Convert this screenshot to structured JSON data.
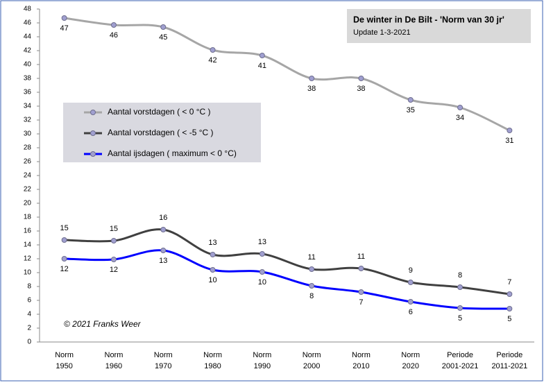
{
  "chart_data": {
    "type": "line",
    "title": "De winter in De Bilt - 'Norm van 30 jr'",
    "subtitle": "Update 1-3-2021",
    "annotation": "© 2021 Franks Weer",
    "categories": [
      [
        "Norm",
        "1950"
      ],
      [
        "Norm",
        "1960"
      ],
      [
        "Norm",
        "1970"
      ],
      [
        "Norm",
        "1980"
      ],
      [
        "Norm",
        "1990"
      ],
      [
        "Norm",
        "2000"
      ],
      [
        "Norm",
        "2010"
      ],
      [
        "Norm",
        "2020"
      ],
      [
        "Periode",
        "2001-2021"
      ],
      [
        "Periode",
        "2011-2021"
      ]
    ],
    "series": [
      {
        "name": "Aantal vorstdagen ( < 0 °C )",
        "color": "#a6a6a6",
        "values": [
          46.7,
          45.7,
          45.4,
          42.1,
          41.3,
          38.0,
          38.0,
          34.9,
          33.8,
          30.5
        ],
        "value_labels": [
          "47",
          "46",
          "45",
          "42",
          "41",
          "38",
          "38",
          "35",
          "34",
          "31"
        ]
      },
      {
        "name": "Aantal vorstdagen ( < -5 °C )",
        "color": "#404040",
        "values": [
          14.7,
          14.6,
          16.2,
          12.6,
          12.7,
          10.5,
          10.6,
          8.6,
          7.9,
          6.9
        ],
        "value_labels": [
          "15",
          "15",
          "16",
          "13",
          "13",
          "11",
          "11",
          "9",
          "8",
          "7"
        ]
      },
      {
        "name": "Aantal ijsdagen ( maximum < 0 °C)",
        "color": "#0000ff",
        "values": [
          12.0,
          11.9,
          13.2,
          10.4,
          10.1,
          8.1,
          7.2,
          5.8,
          4.9,
          4.8
        ],
        "value_labels": [
          "12",
          "12",
          "13",
          "10",
          "10",
          "8",
          "7",
          "6",
          "5",
          "5"
        ]
      }
    ],
    "ylim": [
      0,
      48
    ],
    "yticks": [
      0,
      2,
      4,
      6,
      8,
      10,
      12,
      14,
      16,
      18,
      20,
      22,
      24,
      26,
      28,
      30,
      32,
      34,
      36,
      38,
      40,
      42,
      44,
      46,
      48
    ],
    "grid": false
  }
}
